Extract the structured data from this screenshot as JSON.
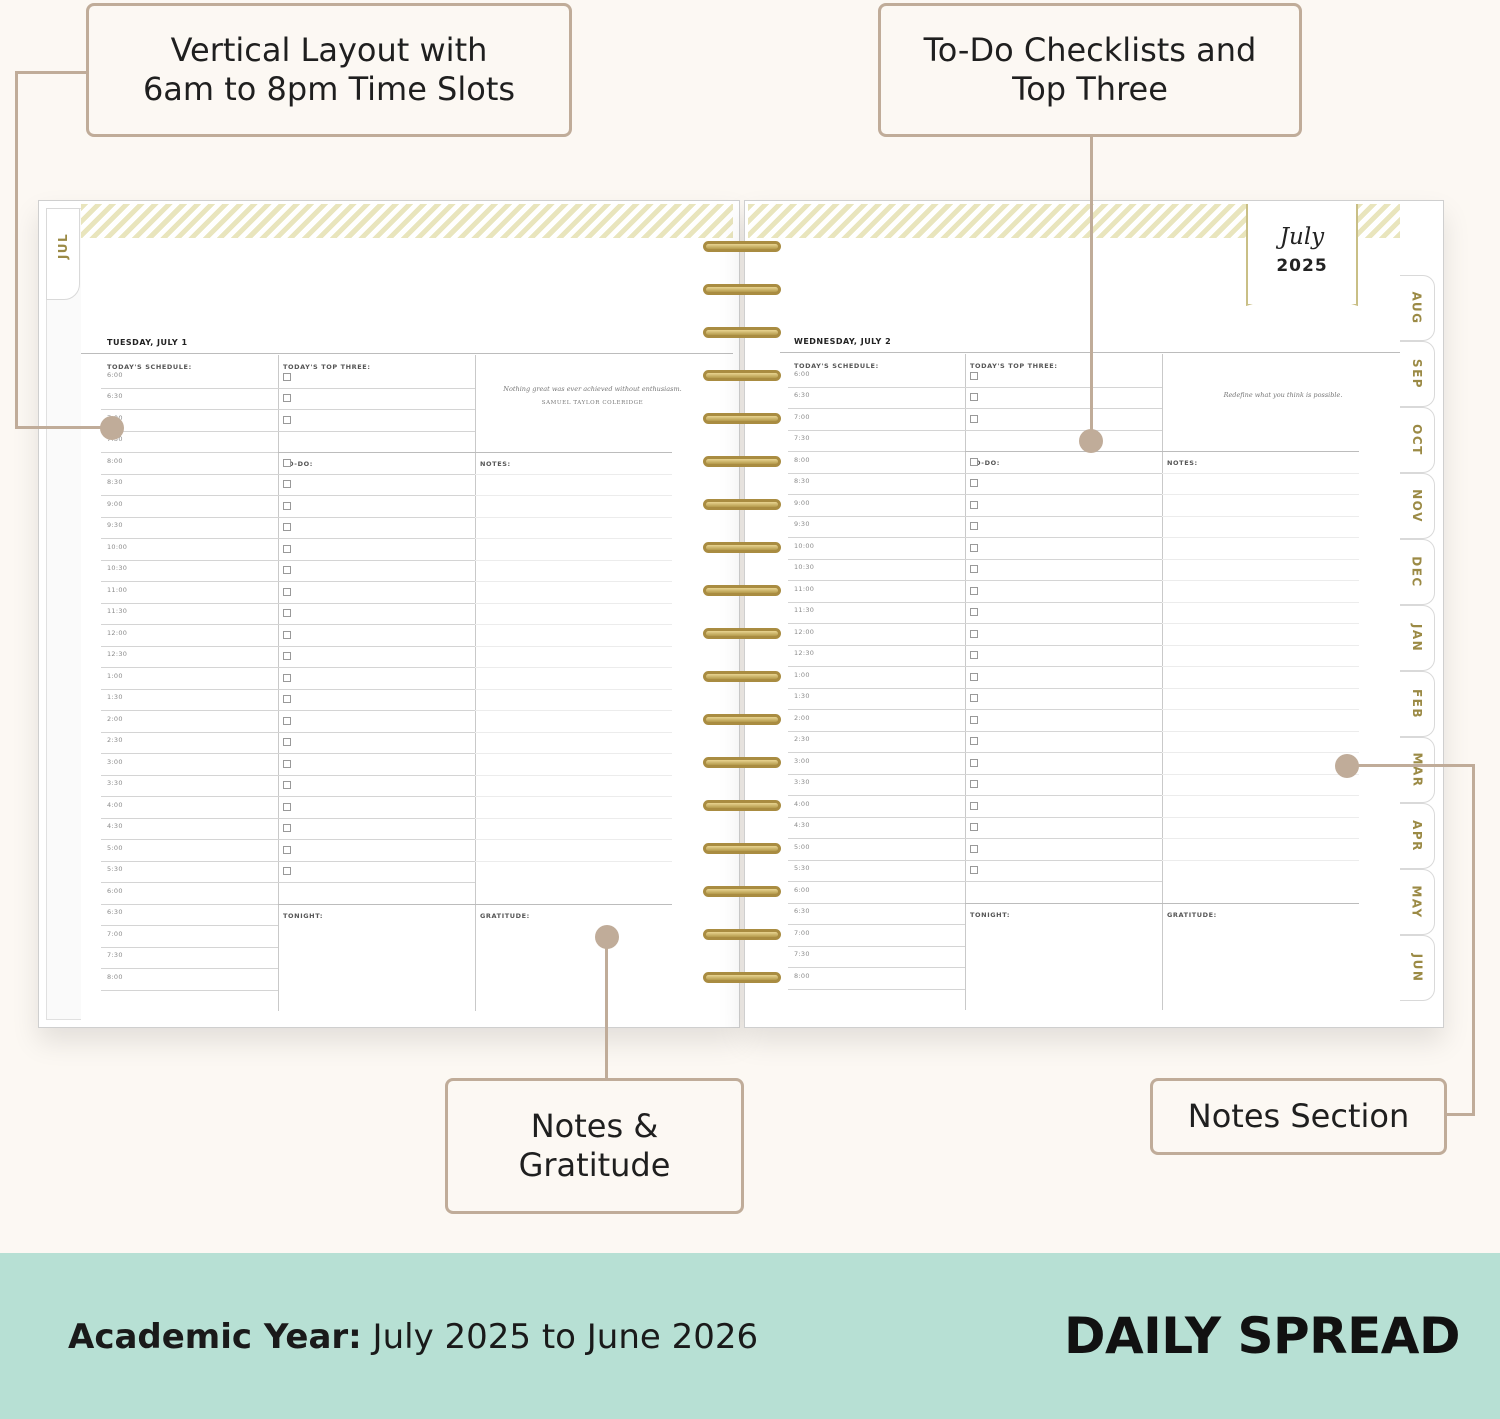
{
  "callouts": {
    "vertical_layout": "Vertical Layout with\n6am to 8pm Time Slots",
    "todo_checklists": "To-Do Checklists and\nTop Three",
    "notes_gratitude": "Notes &\nGratitude",
    "notes_section": "Notes Section"
  },
  "planner": {
    "left_tab": "JUL",
    "month_tabs": [
      "AUG",
      "SEP",
      "OCT",
      "NOV",
      "DEC",
      "JAN",
      "FEB",
      "MAR",
      "APR",
      "MAY",
      "JUN"
    ],
    "banner": {
      "month": "July",
      "year": "2025"
    },
    "left_page": {
      "day": "TUESDAY, JULY 1",
      "quote": "Nothing great was ever achieved without enthusiasm.",
      "quote_author": "SAMUEL TAYLOR COLERIDGE"
    },
    "right_page": {
      "day": "WEDNESDAY, JULY 2",
      "quote": "Redefine what you think is possible."
    },
    "labels": {
      "schedule": "TODAY'S SCHEDULE:",
      "top_three": "TODAY'S TOP THREE:",
      "todo": "TO-DO:",
      "notes": "NOTES:",
      "tonight": "TONIGHT:",
      "gratitude": "GRATITUDE:"
    },
    "times": [
      "6:00",
      "6:30",
      "7:00",
      "7:30",
      "8:00",
      "8:30",
      "9:00",
      "9:30",
      "10:00",
      "10:30",
      "11:00",
      "11:30",
      "12:00",
      "12:30",
      "1:00",
      "1:30",
      "2:00",
      "2:30",
      "3:00",
      "3:30",
      "4:00",
      "4:30",
      "5:00",
      "5:30",
      "6:00",
      "6:30",
      "7:00",
      "7:30",
      "8:00"
    ]
  },
  "footer": {
    "academic_label": "Academic Year:",
    "academic_value": " July 2025 to June 2026",
    "title": "DAILY SPREAD"
  },
  "colors": {
    "accent_beige": "#c0ac99",
    "footer_bg": "#b7e0d4",
    "gold": "#a98c41",
    "background": "#fcf8f3"
  }
}
